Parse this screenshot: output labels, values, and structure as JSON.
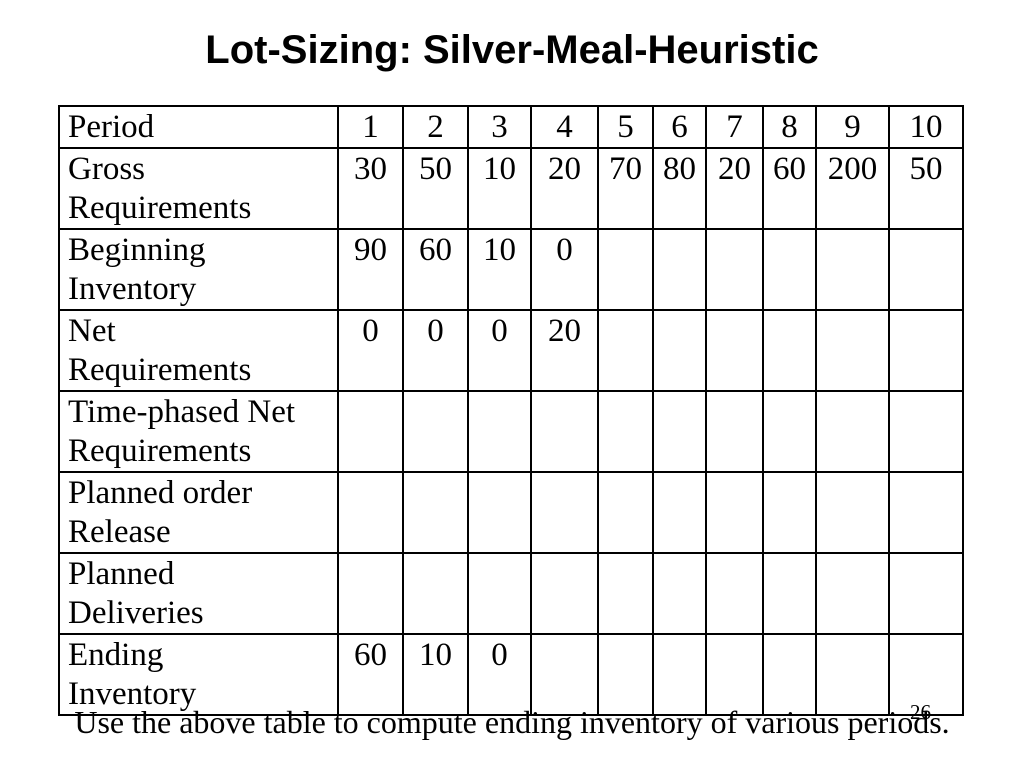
{
  "slide": {
    "title": "Lot-Sizing: Silver-Meal-Heuristic",
    "footer_note": "Use the above table to compute ending inventory of various periods.",
    "page_number": "26"
  },
  "table": {
    "header_label": "Period",
    "period_columns": [
      "1",
      "2",
      "3",
      "4",
      "5",
      "6",
      "7",
      "8",
      "9",
      "10"
    ],
    "rows": [
      {
        "label": "Gross\nRequirements",
        "values": [
          "30",
          "50",
          "10",
          "20",
          "70",
          "80",
          "20",
          "60",
          "200",
          "50"
        ]
      },
      {
        "label": "Beginning\nInventory",
        "values": [
          "90",
          "60",
          "10",
          "0",
          "",
          "",
          "",
          "",
          "",
          ""
        ]
      },
      {
        "label": "Net\nRequirements",
        "values": [
          "0",
          "0",
          "0",
          "20",
          "",
          "",
          "",
          "",
          "",
          ""
        ]
      },
      {
        "label": "Time-phased Net\nRequirements",
        "values": [
          "",
          "",
          "",
          "",
          "",
          "",
          "",
          "",
          "",
          ""
        ]
      },
      {
        "label": "Planned order\nRelease",
        "values": [
          "",
          "",
          "",
          "",
          "",
          "",
          "",
          "",
          "",
          ""
        ]
      },
      {
        "label": "Planned\nDeliveries",
        "values": [
          "",
          "",
          "",
          "",
          "",
          "",
          "",
          "",
          "",
          ""
        ]
      },
      {
        "label": "Ending\nInventory",
        "values": [
          "60",
          "10",
          "0",
          "",
          "",
          "",
          "",
          "",
          "",
          ""
        ]
      }
    ]
  }
}
